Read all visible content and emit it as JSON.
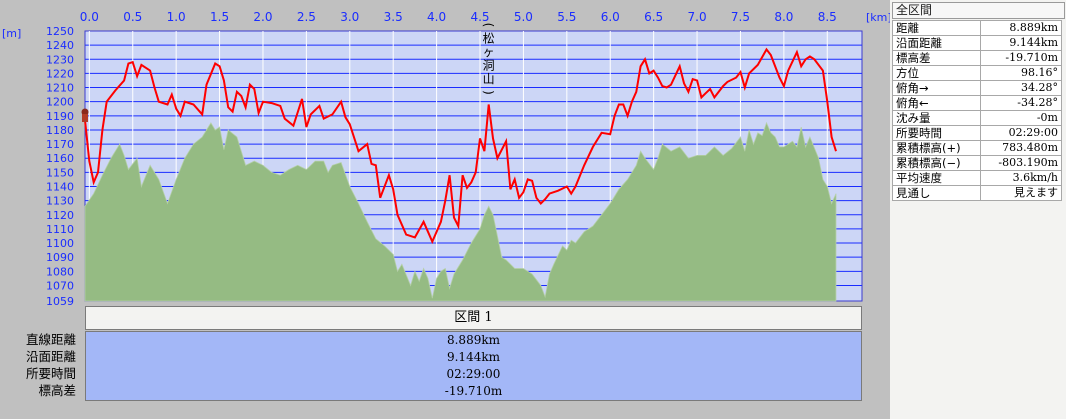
{
  "chart_data": {
    "type": "area",
    "xlabel_unit": "[km]",
    "ylabel_unit": "[m]",
    "xlim": [
      -0.05,
      8.9
    ],
    "ylim": [
      1059,
      1250
    ],
    "x_ticks": [
      "0.0",
      "0.5",
      "1.0",
      "1.5",
      "2.0",
      "2.5",
      "3.0",
      "3.5",
      "4.0",
      "4.5",
      "5.0",
      "5.5",
      "6.0",
      "6.5",
      "7.0",
      "7.5",
      "8.0",
      "8.5"
    ],
    "y_ticks": [
      "1250",
      "1240",
      "1230",
      "1220",
      "1210",
      "1200",
      "1190",
      "1180",
      "1170",
      "1160",
      "1150",
      "1140",
      "1130",
      "1120",
      "1110",
      "1100",
      "1090",
      "1080",
      "1070",
      "1059"
    ],
    "annotation": "(松ヶ洞山)",
    "series": [
      {
        "values": [
          [
            -0.05,
            1187
          ],
          [
            0.0,
            1158
          ],
          [
            0.05,
            1143
          ],
          [
            0.1,
            1150
          ],
          [
            0.15,
            1180
          ],
          [
            0.2,
            1200
          ],
          [
            0.3,
            1208
          ],
          [
            0.4,
            1215
          ],
          [
            0.45,
            1227
          ],
          [
            0.5,
            1228
          ],
          [
            0.55,
            1218
          ],
          [
            0.6,
            1226
          ],
          [
            0.7,
            1222
          ],
          [
            0.75,
            1210
          ],
          [
            0.8,
            1200
          ],
          [
            0.9,
            1198
          ],
          [
            0.95,
            1205
          ],
          [
            1.0,
            1195
          ],
          [
            1.05,
            1190
          ],
          [
            1.1,
            1200
          ],
          [
            1.2,
            1198
          ],
          [
            1.3,
            1191
          ],
          [
            1.35,
            1212
          ],
          [
            1.45,
            1227
          ],
          [
            1.5,
            1225
          ],
          [
            1.55,
            1215
          ],
          [
            1.6,
            1196
          ],
          [
            1.65,
            1193
          ],
          [
            1.7,
            1207
          ],
          [
            1.75,
            1204
          ],
          [
            1.8,
            1196
          ],
          [
            1.85,
            1212
          ],
          [
            1.9,
            1209
          ],
          [
            1.95,
            1192
          ],
          [
            2.0,
            1200
          ],
          [
            2.1,
            1199
          ],
          [
            2.2,
            1197
          ],
          [
            2.25,
            1188
          ],
          [
            2.35,
            1183
          ],
          [
            2.45,
            1202
          ],
          [
            2.5,
            1182
          ],
          [
            2.55,
            1191
          ],
          [
            2.65,
            1197
          ],
          [
            2.7,
            1188
          ],
          [
            2.8,
            1191
          ],
          [
            2.9,
            1200
          ],
          [
            2.95,
            1189
          ],
          [
            3.0,
            1184
          ],
          [
            3.1,
            1165
          ],
          [
            3.2,
            1170
          ],
          [
            3.25,
            1156
          ],
          [
            3.3,
            1155
          ],
          [
            3.35,
            1132
          ],
          [
            3.45,
            1148
          ],
          [
            3.5,
            1138
          ],
          [
            3.55,
            1120
          ],
          [
            3.65,
            1106
          ],
          [
            3.75,
            1104
          ],
          [
            3.85,
            1115
          ],
          [
            3.95,
            1101
          ],
          [
            4.05,
            1115
          ],
          [
            4.1,
            1130
          ],
          [
            4.15,
            1148
          ],
          [
            4.2,
            1118
          ],
          [
            4.25,
            1112
          ],
          [
            4.3,
            1148
          ],
          [
            4.35,
            1139
          ],
          [
            4.4,
            1143
          ],
          [
            4.45,
            1150
          ],
          [
            4.5,
            1174
          ],
          [
            4.55,
            1165
          ],
          [
            4.6,
            1198
          ],
          [
            4.65,
            1174
          ],
          [
            4.7,
            1160
          ],
          [
            4.8,
            1172
          ],
          [
            4.85,
            1138
          ],
          [
            4.9,
            1145
          ],
          [
            4.95,
            1132
          ],
          [
            5.0,
            1136
          ],
          [
            5.05,
            1145
          ],
          [
            5.1,
            1144
          ],
          [
            5.15,
            1132
          ],
          [
            5.2,
            1128
          ],
          [
            5.25,
            1131
          ],
          [
            5.3,
            1135
          ],
          [
            5.4,
            1137
          ],
          [
            5.5,
            1140
          ],
          [
            5.55,
            1135
          ],
          [
            5.6,
            1140
          ],
          [
            5.7,
            1155
          ],
          [
            5.8,
            1168
          ],
          [
            5.9,
            1178
          ],
          [
            6.0,
            1177
          ],
          [
            6.05,
            1190
          ],
          [
            6.1,
            1198
          ],
          [
            6.15,
            1198
          ],
          [
            6.2,
            1190
          ],
          [
            6.25,
            1200
          ],
          [
            6.3,
            1207
          ],
          [
            6.35,
            1225
          ],
          [
            6.4,
            1230
          ],
          [
            6.45,
            1220
          ],
          [
            6.5,
            1222
          ],
          [
            6.55,
            1217
          ],
          [
            6.6,
            1211
          ],
          [
            6.65,
            1210
          ],
          [
            6.7,
            1212
          ],
          [
            6.8,
            1225
          ],
          [
            6.85,
            1213
          ],
          [
            6.9,
            1207
          ],
          [
            6.95,
            1216
          ],
          [
            7.0,
            1215
          ],
          [
            7.05,
            1203
          ],
          [
            7.1,
            1206
          ],
          [
            7.15,
            1209
          ],
          [
            7.2,
            1203
          ],
          [
            7.3,
            1211
          ],
          [
            7.35,
            1214
          ],
          [
            7.45,
            1217
          ],
          [
            7.5,
            1221
          ],
          [
            7.55,
            1210
          ],
          [
            7.6,
            1220
          ],
          [
            7.7,
            1226
          ],
          [
            7.8,
            1237
          ],
          [
            7.85,
            1233
          ],
          [
            7.95,
            1217
          ],
          [
            8.0,
            1211
          ],
          [
            8.05,
            1222
          ],
          [
            8.15,
            1235
          ],
          [
            8.2,
            1225
          ],
          [
            8.25,
            1230
          ],
          [
            8.3,
            1232
          ],
          [
            8.35,
            1230
          ],
          [
            8.45,
            1222
          ],
          [
            8.5,
            1200
          ],
          [
            8.55,
            1175
          ],
          [
            8.6,
            1165
          ]
        ]
      },
      {
        "values": [
          [
            -0.05,
            1126
          ],
          [
            0.05,
            1135
          ],
          [
            0.15,
            1148
          ],
          [
            0.25,
            1160
          ],
          [
            0.35,
            1170
          ],
          [
            0.4,
            1162
          ],
          [
            0.45,
            1152
          ],
          [
            0.55,
            1160
          ],
          [
            0.6,
            1140
          ],
          [
            0.7,
            1155
          ],
          [
            0.8,
            1145
          ],
          [
            0.9,
            1128
          ],
          [
            1.0,
            1145
          ],
          [
            1.1,
            1160
          ],
          [
            1.2,
            1170
          ],
          [
            1.3,
            1175
          ],
          [
            1.4,
            1185
          ],
          [
            1.45,
            1180
          ],
          [
            1.5,
            1182
          ],
          [
            1.55,
            1166
          ],
          [
            1.6,
            1180
          ],
          [
            1.7,
            1175
          ],
          [
            1.8,
            1155
          ],
          [
            1.9,
            1158
          ],
          [
            2.0,
            1155
          ],
          [
            2.1,
            1150
          ],
          [
            2.2,
            1148
          ],
          [
            2.3,
            1152
          ],
          [
            2.4,
            1155
          ],
          [
            2.5,
            1152
          ],
          [
            2.6,
            1158
          ],
          [
            2.7,
            1158
          ],
          [
            2.75,
            1150
          ],
          [
            2.8,
            1155
          ],
          [
            2.9,
            1157
          ],
          [
            3.0,
            1140
          ],
          [
            3.1,
            1128
          ],
          [
            3.2,
            1115
          ],
          [
            3.3,
            1103
          ],
          [
            3.4,
            1098
          ],
          [
            3.5,
            1092
          ],
          [
            3.55,
            1080
          ],
          [
            3.6,
            1085
          ],
          [
            3.7,
            1070
          ],
          [
            3.75,
            1080
          ],
          [
            3.8,
            1073
          ],
          [
            3.85,
            1082
          ],
          [
            3.9,
            1075
          ],
          [
            3.95,
            1061
          ],
          [
            4.0,
            1075
          ],
          [
            4.05,
            1080
          ],
          [
            4.1,
            1082
          ],
          [
            4.15,
            1068
          ],
          [
            4.2,
            1078
          ],
          [
            4.3,
            1088
          ],
          [
            4.4,
            1100
          ],
          [
            4.5,
            1110
          ],
          [
            4.55,
            1120
          ],
          [
            4.6,
            1126
          ],
          [
            4.65,
            1120
          ],
          [
            4.7,
            1105
          ],
          [
            4.75,
            1090
          ],
          [
            4.8,
            1088
          ],
          [
            4.85,
            1085
          ],
          [
            4.9,
            1082
          ],
          [
            5.0,
            1082
          ],
          [
            5.1,
            1078
          ],
          [
            5.2,
            1070
          ],
          [
            5.25,
            1062
          ],
          [
            5.3,
            1078
          ],
          [
            5.35,
            1085
          ],
          [
            5.45,
            1098
          ],
          [
            5.5,
            1095
          ],
          [
            5.55,
            1102
          ],
          [
            5.6,
            1100
          ],
          [
            5.7,
            1108
          ],
          [
            5.8,
            1112
          ],
          [
            5.9,
            1120
          ],
          [
            6.0,
            1128
          ],
          [
            6.1,
            1138
          ],
          [
            6.2,
            1145
          ],
          [
            6.3,
            1155
          ],
          [
            6.35,
            1165
          ],
          [
            6.4,
            1160
          ],
          [
            6.5,
            1152
          ],
          [
            6.55,
            1160
          ],
          [
            6.6,
            1170
          ],
          [
            6.7,
            1165
          ],
          [
            6.8,
            1168
          ],
          [
            6.9,
            1160
          ],
          [
            7.0,
            1162
          ],
          [
            7.1,
            1162
          ],
          [
            7.2,
            1168
          ],
          [
            7.3,
            1162
          ],
          [
            7.4,
            1167
          ],
          [
            7.5,
            1175
          ],
          [
            7.55,
            1165
          ],
          [
            7.6,
            1180
          ],
          [
            7.65,
            1170
          ],
          [
            7.7,
            1178
          ],
          [
            7.75,
            1176
          ],
          [
            7.8,
            1185
          ],
          [
            7.85,
            1178
          ],
          [
            7.9,
            1175
          ],
          [
            7.95,
            1168
          ],
          [
            8.0,
            1168
          ],
          [
            8.1,
            1172
          ],
          [
            8.15,
            1168
          ],
          [
            8.2,
            1182
          ],
          [
            8.25,
            1168
          ],
          [
            8.3,
            1175
          ],
          [
            8.4,
            1160
          ],
          [
            8.45,
            1145
          ],
          [
            8.5,
            1140
          ],
          [
            8.55,
            1128
          ],
          [
            8.6,
            1135
          ]
        ]
      }
    ],
    "colors": {
      "plot_bg": "#ccd6f6",
      "grid": "#1a2cff",
      "area_fill": "#95bb83",
      "line": "#ff0000",
      "frame": "#3c3cd0"
    }
  },
  "section": {
    "header": "区間 1",
    "labels": [
      "直線距離",
      "沿面距離",
      "所要時間",
      "標高差"
    ],
    "values": [
      "8.889km",
      "9.144km",
      "02:29:00",
      "-19.710m"
    ]
  },
  "panel": {
    "title": "全区間",
    "rows": [
      {
        "label": "距離",
        "value": "8.889km"
      },
      {
        "label": "沿面距離",
        "value": "9.144km"
      },
      {
        "label": "標高差",
        "value": "-19.710m"
      },
      {
        "label": "方位",
        "value": "98.16°"
      },
      {
        "label": "俯角→",
        "value": "34.28°"
      },
      {
        "label": "俯角←",
        "value": "-34.28°"
      },
      {
        "label": "沈み量",
        "value": "-0m"
      },
      {
        "label": "所要時間",
        "value": "02:29:00"
      },
      {
        "label": "累積標高(+)",
        "value": "783.480m"
      },
      {
        "label": "累積標高(−)",
        "value": "-803.190m"
      },
      {
        "label": "平均速度",
        "value": "3.6km/h"
      },
      {
        "label": "見通し",
        "value": "見えます"
      }
    ]
  }
}
